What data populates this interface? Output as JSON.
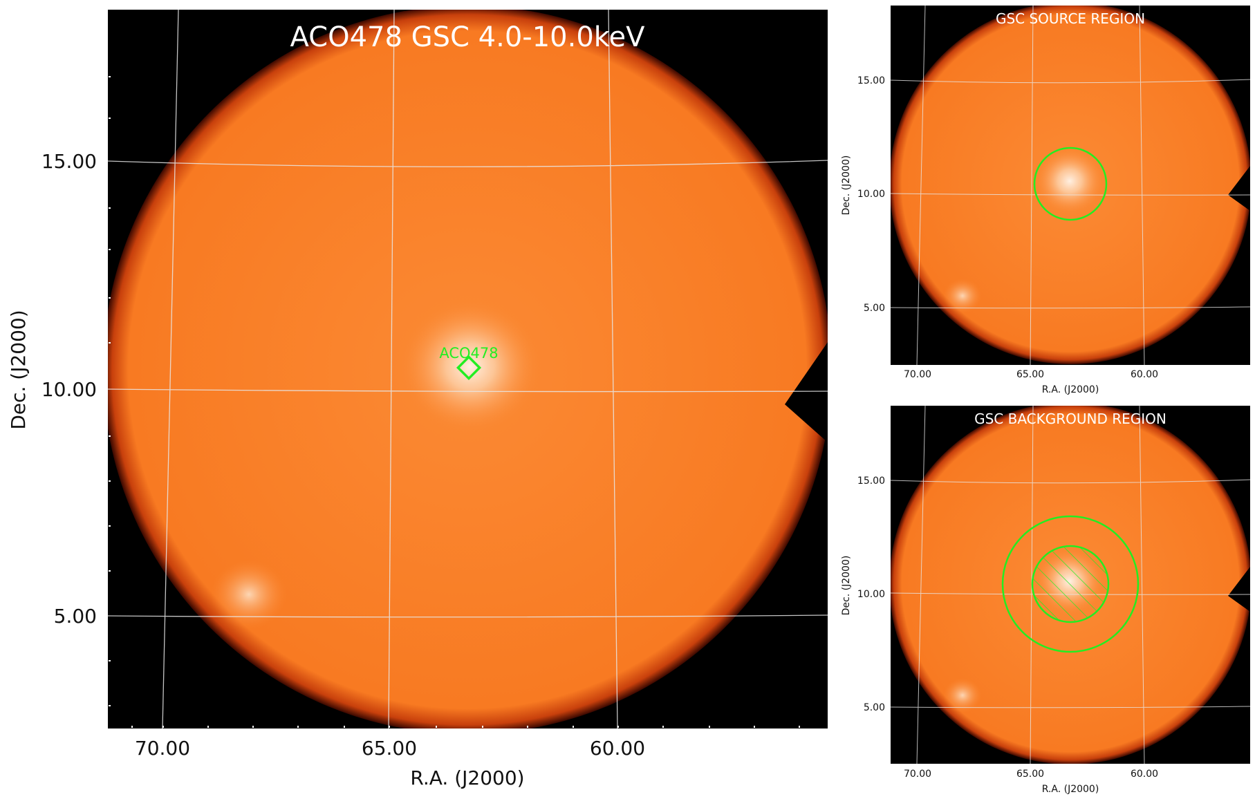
{
  "main": {
    "title": "ACO478 GSC 4.0-10.0keV",
    "source_label": "ACO478",
    "xlabel": "R.A. (J2000)",
    "ylabel": "Dec. (J2000)",
    "xticks": [
      "70.00",
      "65.00",
      "60.00"
    ],
    "yticks": [
      "15.00",
      "10.00",
      "5.00"
    ]
  },
  "panel_source": {
    "title": "GSC SOURCE REGION",
    "xlabel": "R.A. (J2000)",
    "ylabel": "Dec. (J2000)",
    "xticks": [
      "70.00",
      "65.00",
      "60.00"
    ],
    "yticks": [
      "15.00",
      "10.00",
      "5.00"
    ]
  },
  "panel_background": {
    "title": "GSC BACKGROUND REGION",
    "xlabel": "R.A. (J2000)",
    "ylabel": "Dec. (J2000)",
    "xticks": [
      "70.00",
      "65.00",
      "60.00"
    ],
    "yticks": [
      "15.00",
      "10.00",
      "5.00"
    ]
  },
  "colors": {
    "frame_bg": "#000000",
    "field": "#f97c24",
    "bright": "#fde0c8",
    "region": "#22ee22",
    "grid": "#e8e8e8",
    "text": "#111111"
  }
}
